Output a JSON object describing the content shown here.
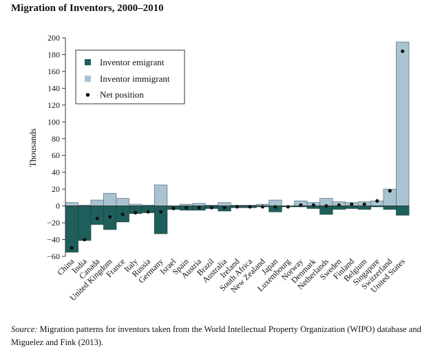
{
  "header": {
    "title": "Migration of Inventors, 2000–2010"
  },
  "source": {
    "label": "Source:",
    "text": " Migration patterns for inventors taken from the World Intellectual Property Organization (WIPO) database and Miguelez and Fink (2013)."
  },
  "chart_data": {
    "type": "bar",
    "ylabel": "Thousands",
    "ylim": [
      -60,
      200
    ],
    "yticks": [
      -60,
      -40,
      -20,
      0,
      20,
      40,
      60,
      80,
      100,
      120,
      140,
      160,
      180,
      200
    ],
    "legend_position": "top-left",
    "categories": [
      "China",
      "India",
      "Canada",
      "United Kingdom",
      "France",
      "Italy",
      "Russia",
      "Germany",
      "Israel",
      "Spain",
      "Austria",
      "Brazil",
      "Australia",
      "Ireland",
      "South Africa",
      "New Zealand",
      "Japan",
      "Luxembourg",
      "Norway",
      "Denmark",
      "Netherlands",
      "Sweden",
      "Finland",
      "Belgium",
      "Singapore",
      "Switzerland",
      "United States"
    ],
    "series": [
      {
        "name": "Inventor emigrant",
        "color": "#1f5f5b",
        "values": [
          -55,
          -41,
          -22,
          -28,
          -19,
          -9,
          -8,
          -33,
          -4,
          -5,
          -5,
          -3,
          -6,
          -2,
          -2,
          -1,
          -7,
          -1,
          -1,
          -3,
          -10,
          -4,
          -3,
          -4,
          -1,
          -4,
          -11
        ]
      },
      {
        "name": "Inventor immigrant",
        "color": "#a9c3d1",
        "values": [
          4,
          1,
          7,
          15,
          9,
          2,
          1,
          25,
          0,
          2,
          3,
          1,
          4,
          1,
          1,
          2,
          7,
          0,
          6,
          4,
          9,
          5,
          4,
          5,
          6,
          20,
          195
        ]
      },
      {
        "name": "Net position",
        "color": "#111111",
        "values": [
          -50,
          -40,
          -15,
          -13,
          -10,
          -8,
          -7,
          -7,
          -3,
          -2,
          -2,
          -2,
          -2,
          -1,
          -1,
          -1,
          -1,
          -1,
          1,
          1,
          0,
          1,
          2,
          2,
          6,
          18,
          184
        ]
      }
    ]
  }
}
